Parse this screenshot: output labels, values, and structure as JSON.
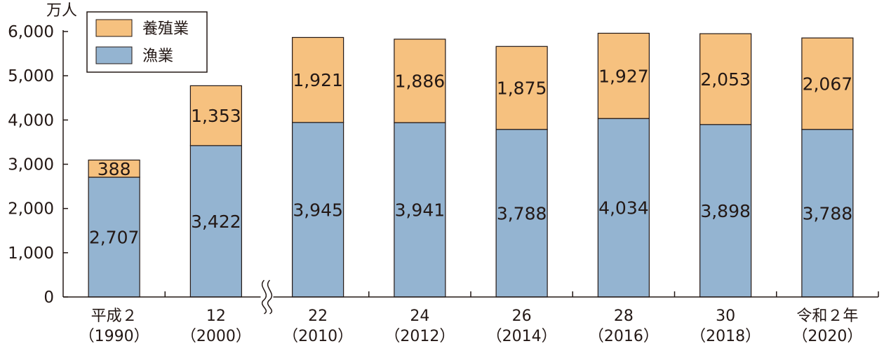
{
  "chart_data": {
    "type": "bar",
    "stacked": true,
    "y_unit": "万人",
    "ylim": [
      0,
      6000
    ],
    "yticks": [
      "0",
      "1,000",
      "2,000",
      "3,000",
      "4,000",
      "5,000",
      "6,000"
    ],
    "categories": [
      {
        "line1": "平成２",
        "line2": "（1990）"
      },
      {
        "line1": "12",
        "line2": "（2000）"
      },
      {
        "line1": "22",
        "line2": "（2010）"
      },
      {
        "line1": "24",
        "line2": "（2012）"
      },
      {
        "line1": "26",
        "line2": "（2014）"
      },
      {
        "line1": "28",
        "line2": "（2016）"
      },
      {
        "line1": "30",
        "line2": "（2018）"
      },
      {
        "line1": "令和２年",
        "line2": "（2020）"
      }
    ],
    "series": [
      {
        "name": "漁業",
        "color": "#94b4d1",
        "values": [
          2707,
          3422,
          3945,
          3941,
          3788,
          4034,
          3898,
          3788
        ],
        "labels": [
          "2,707",
          "3,422",
          "3,945",
          "3,941",
          "3,788",
          "4,034",
          "3,898",
          "3,788"
        ]
      },
      {
        "name": "養殖業",
        "color": "#f6c17f",
        "values": [
          388,
          1353,
          1921,
          1886,
          1875,
          1927,
          2053,
          2067
        ],
        "labels": [
          "388",
          "1,353",
          "1,921",
          "1,886",
          "1,875",
          "1,927",
          "2,053",
          "2,067"
        ]
      }
    ],
    "legend": [
      {
        "name": "養殖業",
        "color": "#f6c17f"
      },
      {
        "name": "漁業",
        "color": "#94b4d1"
      }
    ],
    "legend_position": "top-left",
    "axis_break_after_category": 1,
    "grid": false
  }
}
